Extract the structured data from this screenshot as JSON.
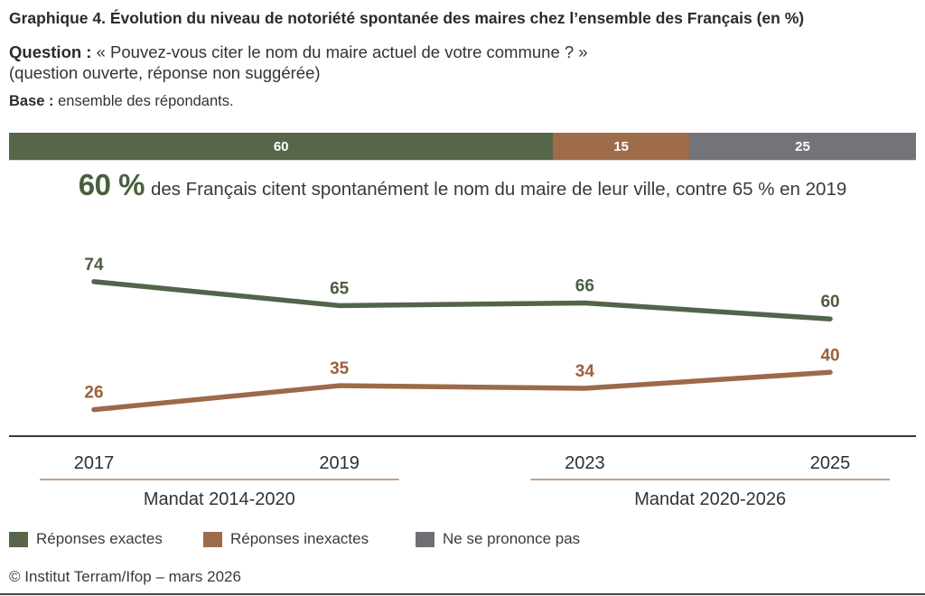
{
  "header": {
    "title_prefix": "Graphique 4.",
    "title": " Évolution du niveau de notoriété spontanée des maires chez l’ensemble des Français (en %)",
    "question_label": "Question :",
    "question_text": " « Pouvez-vous citer le nom du maire actuel de votre commune ? »",
    "question_note": "(question ouverte, réponse non suggérée)",
    "base_label": "Base :",
    "base_text": " ensemble des répondants."
  },
  "summary_bar": {
    "segments": [
      {
        "label": "60",
        "value": 60,
        "color": "#57654a"
      },
      {
        "label": "15",
        "value": 15,
        "color": "#9e6c4a"
      },
      {
        "label": "25",
        "value": 25,
        "color": "#73747a"
      }
    ]
  },
  "highlight": {
    "number": "60 %",
    "text": "des Français citent spontanément le nom du maire de leur ville, contre 65 % en 2019"
  },
  "chart_data": {
    "type": "line",
    "title": "Évolution du niveau de notoriété spontanée des maires chez l’ensemble des Français (en %)",
    "x": [
      "2017",
      "2019",
      "2023",
      "2025"
    ],
    "series": [
      {
        "name": "Réponses exactes",
        "values": [
          74,
          65,
          66,
          60
        ],
        "color": "#52654a",
        "label_color": "#4c5e40"
      },
      {
        "name": "Réponses inexactes",
        "values": [
          26,
          35,
          34,
          40
        ],
        "color": "#9c6a49",
        "label_color": "#9c5f3b"
      }
    ],
    "periods": [
      {
        "label": "Mandat 2014-2020",
        "from": 0,
        "to": 1
      },
      {
        "label": "Mandat 2020-2026",
        "from": 2,
        "to": 3
      }
    ],
    "stacked_summary": {
      "categories": [
        "Réponses exactes",
        "Réponses inexactes",
        "Ne se prononce pas"
      ],
      "values": [
        60,
        15,
        25
      ]
    },
    "ylim": [
      0,
      100
    ],
    "grid": false,
    "legend_position": "bottom",
    "xlabel": "",
    "ylabel": ""
  },
  "legend": {
    "items": [
      {
        "label": "Réponses exactes",
        "color": "#57654a"
      },
      {
        "label": "Réponses inexactes",
        "color": "#9e6c4a"
      },
      {
        "label": "Ne se prononce pas",
        "color": "#6f7075"
      }
    ]
  },
  "footer": {
    "credit": "© Institut Terram/Ifop – mars 2026"
  }
}
